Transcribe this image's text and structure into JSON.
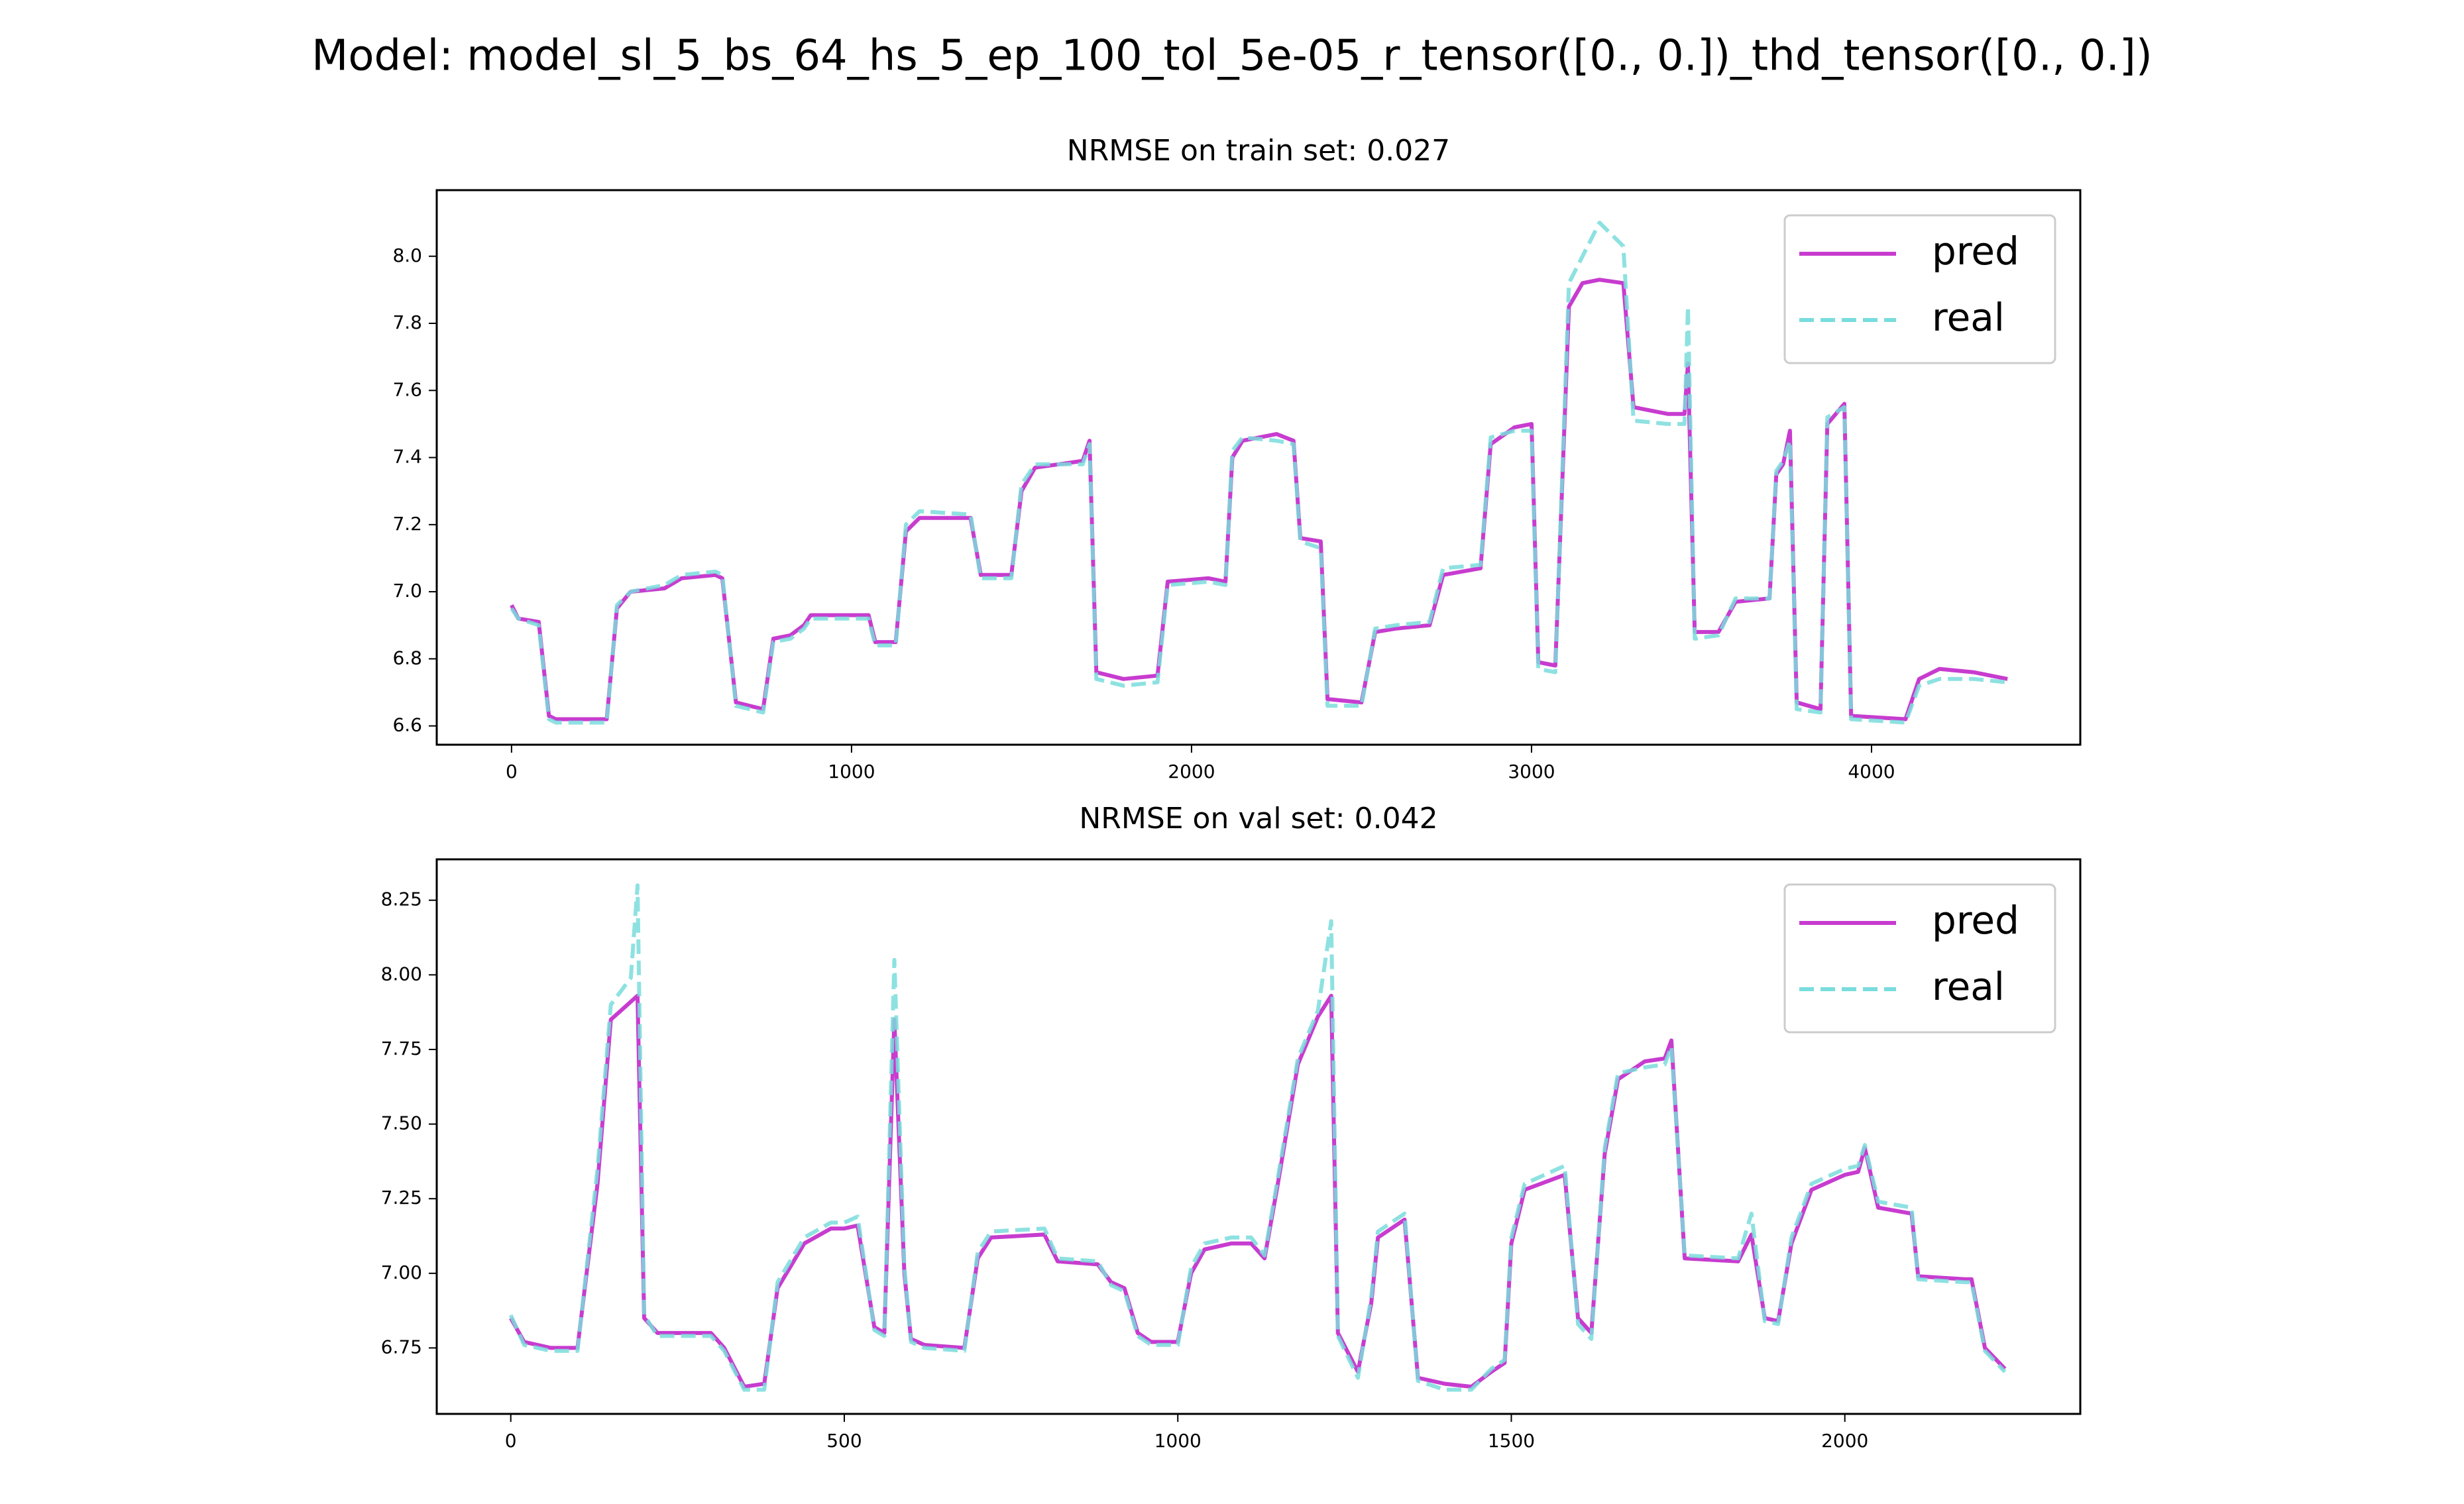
{
  "title": "Model: model_sl_5_bs_64_hs_5_ep_100_tol_5e-05_r_tensor([0., 0.])_thd_tensor([0., 0.])",
  "chart_data": [
    {
      "type": "line",
      "title": "NRMSE on train set: 0.027",
      "x": [
        0,
        20,
        80,
        110,
        130,
        280,
        310,
        350,
        450,
        500,
        600,
        620,
        660,
        700,
        740,
        770,
        820,
        860,
        880,
        1050,
        1070,
        1130,
        1160,
        1200,
        1350,
        1380,
        1470,
        1500,
        1540,
        1680,
        1700,
        1720,
        1800,
        1900,
        1930,
        2050,
        2100,
        2120,
        2150,
        2250,
        2300,
        2320,
        2380,
        2400,
        2500,
        2540,
        2600,
        2700,
        2740,
        2850,
        2880,
        2950,
        3000,
        3020,
        3070,
        3110,
        3150,
        3200,
        3270,
        3300,
        3400,
        3450,
        3460,
        3480,
        3550,
        3600,
        3700,
        3720,
        3740,
        3760,
        3780,
        3850,
        3870,
        3920,
        3940,
        4100,
        4140,
        4200,
        4300,
        4400
      ],
      "series": [
        {
          "name": "pred",
          "color": "#c73ccf",
          "linestyle": "solid",
          "values": [
            6.96,
            6.92,
            6.91,
            6.63,
            6.62,
            6.62,
            6.95,
            7.0,
            7.01,
            7.04,
            7.05,
            7.04,
            6.67,
            6.66,
            6.65,
            6.86,
            6.87,
            6.9,
            6.93,
            6.93,
            6.85,
            6.85,
            7.18,
            7.22,
            7.22,
            7.05,
            7.05,
            7.3,
            7.37,
            7.39,
            7.45,
            6.76,
            6.74,
            6.75,
            7.03,
            7.04,
            7.03,
            7.4,
            7.45,
            7.47,
            7.45,
            7.16,
            7.15,
            6.68,
            6.67,
            6.88,
            6.89,
            6.9,
            7.05,
            7.07,
            7.44,
            7.49,
            7.5,
            6.79,
            6.78,
            7.85,
            7.92,
            7.93,
            7.92,
            7.55,
            7.53,
            7.53,
            7.68,
            6.88,
            6.88,
            6.97,
            6.98,
            7.35,
            7.38,
            7.48,
            6.67,
            6.65,
            7.5,
            7.56,
            6.63,
            6.62,
            6.74,
            6.77,
            6.76,
            6.74
          ]
        },
        {
          "name": "real",
          "color": "#7adcdc",
          "linestyle": "dashed",
          "values": [
            6.95,
            6.92,
            6.9,
            6.62,
            6.61,
            6.61,
            6.96,
            7.0,
            7.02,
            7.05,
            7.06,
            7.05,
            6.66,
            6.65,
            6.64,
            6.85,
            6.86,
            6.89,
            6.92,
            6.92,
            6.84,
            6.84,
            7.2,
            7.24,
            7.23,
            7.04,
            7.04,
            7.32,
            7.38,
            7.38,
            7.44,
            6.74,
            6.72,
            6.73,
            7.02,
            7.03,
            7.02,
            7.42,
            7.46,
            7.45,
            7.44,
            7.15,
            7.13,
            6.66,
            6.66,
            6.89,
            6.9,
            6.91,
            7.07,
            7.08,
            7.46,
            7.48,
            7.48,
            6.77,
            6.76,
            7.92,
            8.0,
            8.1,
            8.03,
            7.51,
            7.5,
            7.5,
            7.85,
            6.86,
            6.87,
            6.98,
            6.98,
            7.36,
            7.39,
            7.45,
            6.65,
            6.64,
            7.52,
            7.55,
            6.62,
            6.61,
            6.72,
            6.74,
            6.74,
            6.73
          ]
        }
      ],
      "xlim": [
        -220,
        4614
      ],
      "ylim": [
        6.544,
        8.197
      ],
      "xticks": [
        0,
        1000,
        2000,
        3000,
        4000
      ],
      "yticks": [
        6.6,
        6.8,
        {
          "value": 7,
          "label": "7.0"
        },
        7.2,
        7.4,
        7.6,
        7.8,
        {
          "value": 8,
          "label": "8.0"
        }
      ],
      "legend": "upper right"
    },
    {
      "type": "line",
      "title": "NRMSE on val set: 0.042",
      "x": [
        0,
        20,
        60,
        100,
        130,
        150,
        180,
        190,
        200,
        220,
        300,
        320,
        350,
        380,
        400,
        440,
        480,
        500,
        520,
        545,
        560,
        575,
        590,
        600,
        620,
        680,
        700,
        720,
        800,
        820,
        880,
        900,
        920,
        940,
        960,
        1000,
        1020,
        1040,
        1080,
        1110,
        1130,
        1150,
        1180,
        1210,
        1230,
        1240,
        1270,
        1290,
        1300,
        1340,
        1360,
        1400,
        1440,
        1470,
        1490,
        1500,
        1520,
        1580,
        1600,
        1620,
        1640,
        1660,
        1700,
        1730,
        1740,
        1760,
        1840,
        1860,
        1880,
        1900,
        1920,
        1950,
        2000,
        2020,
        2030,
        2050,
        2100,
        2110,
        2180,
        2190,
        2210,
        2240
      ],
      "series": [
        {
          "name": "pred",
          "color": "#c73ccf",
          "linestyle": "solid",
          "values": [
            6.85,
            6.77,
            6.75,
            6.75,
            7.3,
            7.85,
            7.91,
            7.93,
            6.85,
            6.8,
            6.8,
            6.75,
            6.62,
            6.63,
            6.95,
            7.1,
            7.15,
            7.15,
            7.16,
            6.82,
            6.8,
            7.85,
            7.0,
            6.78,
            6.76,
            6.75,
            7.05,
            7.12,
            7.13,
            7.04,
            7.03,
            6.97,
            6.95,
            6.8,
            6.77,
            6.77,
            7.0,
            7.08,
            7.1,
            7.1,
            7.05,
            7.3,
            7.7,
            7.86,
            7.93,
            6.8,
            6.67,
            6.9,
            7.12,
            7.18,
            6.65,
            6.63,
            6.62,
            6.67,
            6.7,
            7.1,
            7.28,
            7.33,
            6.85,
            6.8,
            7.4,
            7.65,
            7.71,
            7.72,
            7.78,
            7.05,
            7.04,
            7.13,
            6.85,
            6.84,
            7.1,
            7.28,
            7.33,
            7.34,
            7.42,
            7.22,
            7.2,
            6.99,
            6.98,
            6.98,
            6.75,
            6.68
          ]
        },
        {
          "name": "real",
          "color": "#7adcdc",
          "linestyle": "dashed",
          "values": [
            6.86,
            6.76,
            6.74,
            6.74,
            7.35,
            7.9,
            7.99,
            8.3,
            6.86,
            6.79,
            6.79,
            6.74,
            6.61,
            6.61,
            6.97,
            7.12,
            7.17,
            7.17,
            7.19,
            6.81,
            6.79,
            8.05,
            7.02,
            6.77,
            6.75,
            6.74,
            7.07,
            7.14,
            7.15,
            7.05,
            7.04,
            6.96,
            6.94,
            6.79,
            6.76,
            6.76,
            7.02,
            7.1,
            7.12,
            7.12,
            7.06,
            7.32,
            7.72,
            7.88,
            8.18,
            6.79,
            6.65,
            6.92,
            7.14,
            7.2,
            6.64,
            6.61,
            6.61,
            6.68,
            6.71,
            7.12,
            7.3,
            7.36,
            6.83,
            6.78,
            7.42,
            7.67,
            7.69,
            7.7,
            7.76,
            7.06,
            7.05,
            7.2,
            6.84,
            6.83,
            7.12,
            7.3,
            7.35,
            7.36,
            7.43,
            7.24,
            7.22,
            6.98,
            6.97,
            6.97,
            6.74,
            6.67
          ]
        }
      ],
      "xlim": [
        -111,
        2353
      ],
      "ylim": [
        6.529,
        8.387
      ],
      "xticks": [
        0,
        500,
        1000,
        1500,
        2000
      ],
      "yticks": [
        6.75,
        {
          "value": 7,
          "label": "7.00"
        },
        7.25,
        {
          "value": 7.5,
          "label": "7.50"
        },
        7.75,
        {
          "value": 8,
          "label": "8.00"
        },
        8.25
      ],
      "legend": "upper right"
    }
  ]
}
